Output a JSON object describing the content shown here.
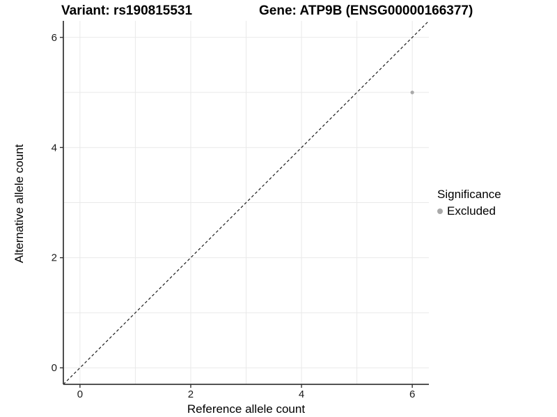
{
  "chart_data": {
    "type": "scatter",
    "title_left": "Variant: rs190815531",
    "title_right": "Gene: ATP9B (ENSG00000166377)",
    "xlabel": "Reference allele count",
    "ylabel": "Alternative allele count",
    "xlim": [
      -0.3,
      6.3
    ],
    "ylim": [
      -0.3,
      6.3
    ],
    "x_ticks": [
      0,
      2,
      4,
      6
    ],
    "y_ticks": [
      0,
      2,
      4,
      6
    ],
    "gridlines": {
      "x": [
        0,
        1,
        2,
        3,
        4,
        5,
        6
      ],
      "y": [
        0,
        1,
        2,
        3,
        4,
        5,
        6
      ],
      "color": "#e9e9e9"
    },
    "reference_line": {
      "slope": 1,
      "intercept": 0,
      "style": "dashed",
      "color": "#1c1c1c"
    },
    "series": [
      {
        "name": "Excluded",
        "color": "#a9a9a9",
        "points": [
          {
            "x": 6,
            "y": 5
          }
        ]
      }
    ],
    "legend": {
      "title": "Significance",
      "position": "right",
      "items": [
        {
          "label": "Excluded",
          "color": "#a9a9a9",
          "marker": "circle"
        }
      ]
    },
    "axis_line_color": "#3a3a3a",
    "tick_color": "#333333",
    "background": "#ffffff",
    "grid_on": true
  }
}
